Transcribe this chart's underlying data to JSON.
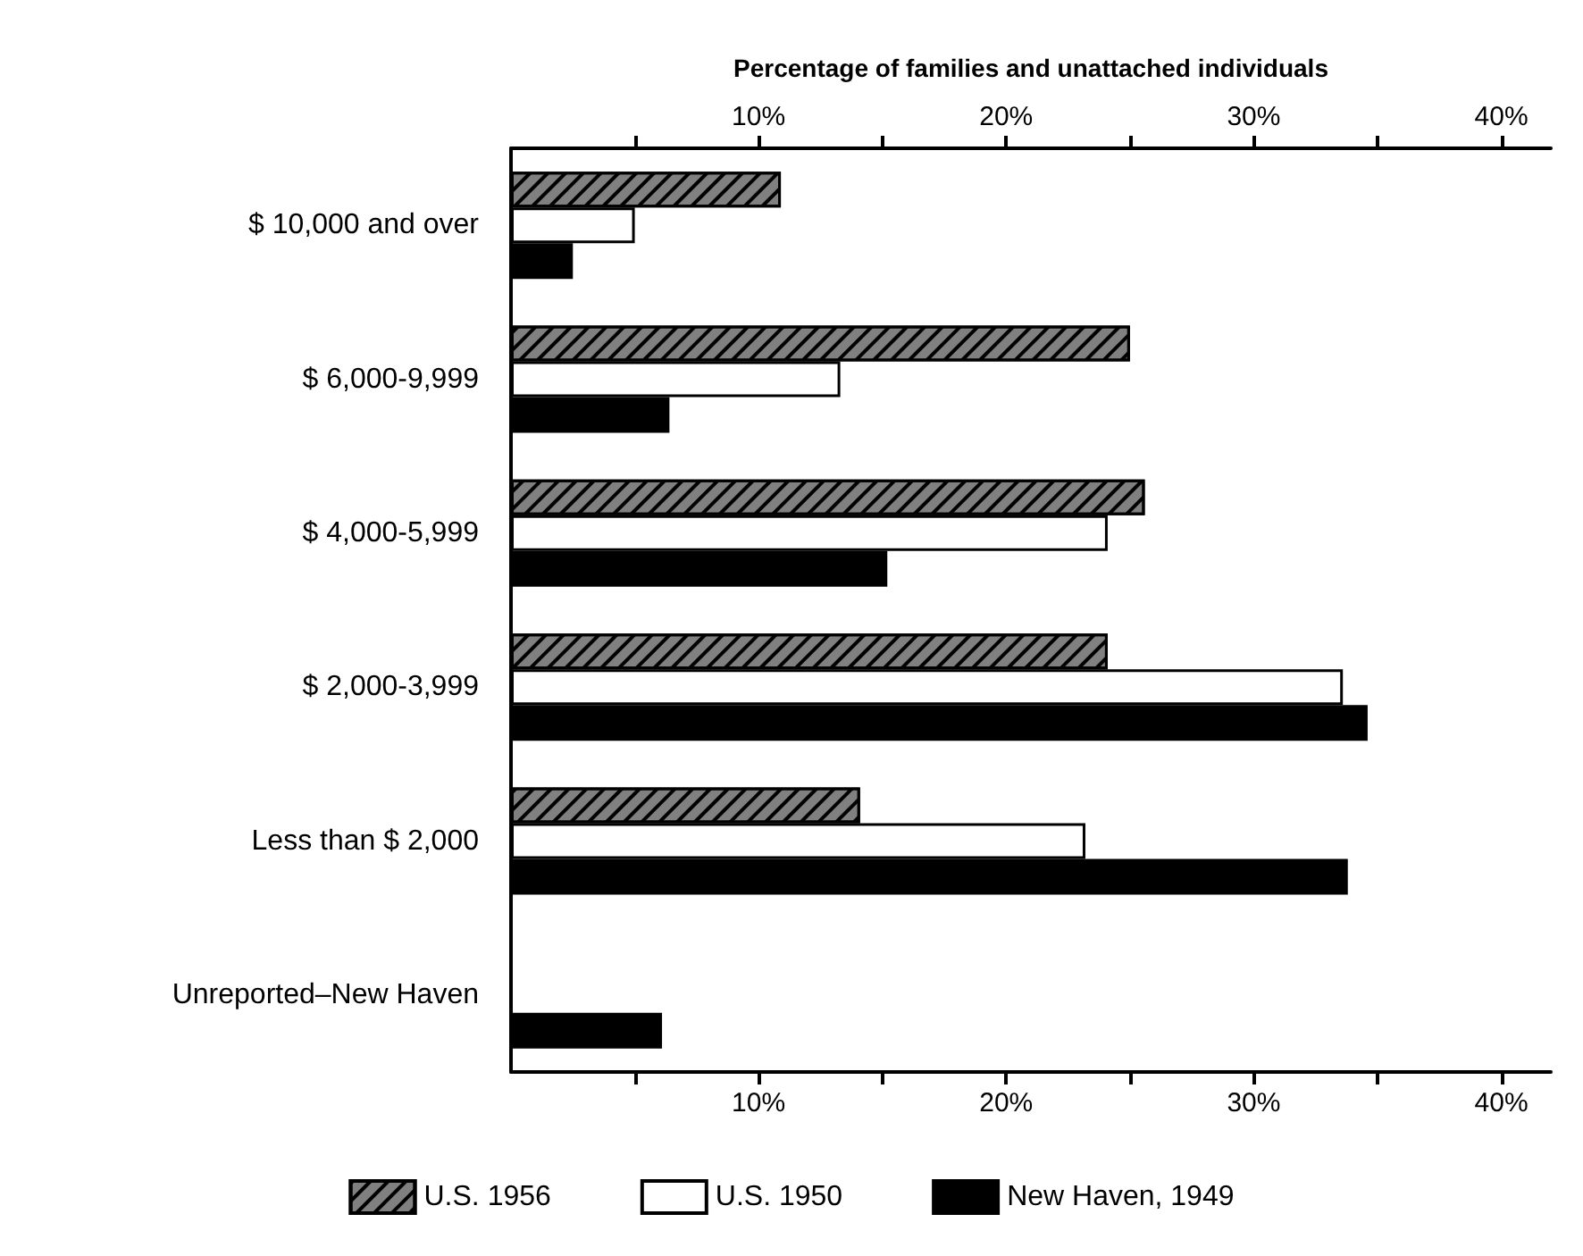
{
  "chart_data": {
    "type": "bar",
    "orientation": "horizontal",
    "x2label": "Percentage of families and unattached individuals",
    "categories": [
      "$ 10,000 and over",
      "$ 6,000-9,999",
      "$ 4,000-5,999",
      "$ 2,000-3,999",
      "Less than $ 2,000",
      "Unreported–New Haven"
    ],
    "series": [
      {
        "name": "U.S. 1956",
        "color": "#808080",
        "values": [
          10.9,
          25.0,
          25.6,
          24.1,
          14.1,
          null
        ]
      },
      {
        "name": "U.S. 1950",
        "color": "#ffffff",
        "values": [
          5.0,
          13.3,
          24.1,
          33.6,
          23.2,
          null
        ]
      },
      {
        "name": "New Haven, 1949",
        "color": "#000000",
        "values": [
          2.5,
          6.4,
          15.2,
          34.6,
          33.8,
          6.1
        ]
      }
    ],
    "xlim": [
      0,
      42
    ],
    "xticks": [
      {
        "value": 5,
        "label": null
      },
      {
        "value": 10,
        "label": "10%"
      },
      {
        "value": 15,
        "label": null
      },
      {
        "value": 20,
        "label": "20%"
      },
      {
        "value": 25,
        "label": null
      },
      {
        "value": 30,
        "label": "30%"
      },
      {
        "value": 35,
        "label": null
      },
      {
        "value": 40,
        "label": "40%"
      }
    ],
    "x2lim": [
      0,
      42
    ],
    "x2ticks": [
      {
        "value": 5,
        "label": null
      },
      {
        "value": 10,
        "label": "10%"
      },
      {
        "value": 15,
        "label": null
      },
      {
        "value": 20,
        "label": "20%"
      },
      {
        "value": 25,
        "label": null
      },
      {
        "value": 30,
        "label": "30%"
      },
      {
        "value": 35,
        "label": null
      },
      {
        "value": 40,
        "label": "40%"
      }
    ],
    "grid": false,
    "legend": "bottom"
  }
}
